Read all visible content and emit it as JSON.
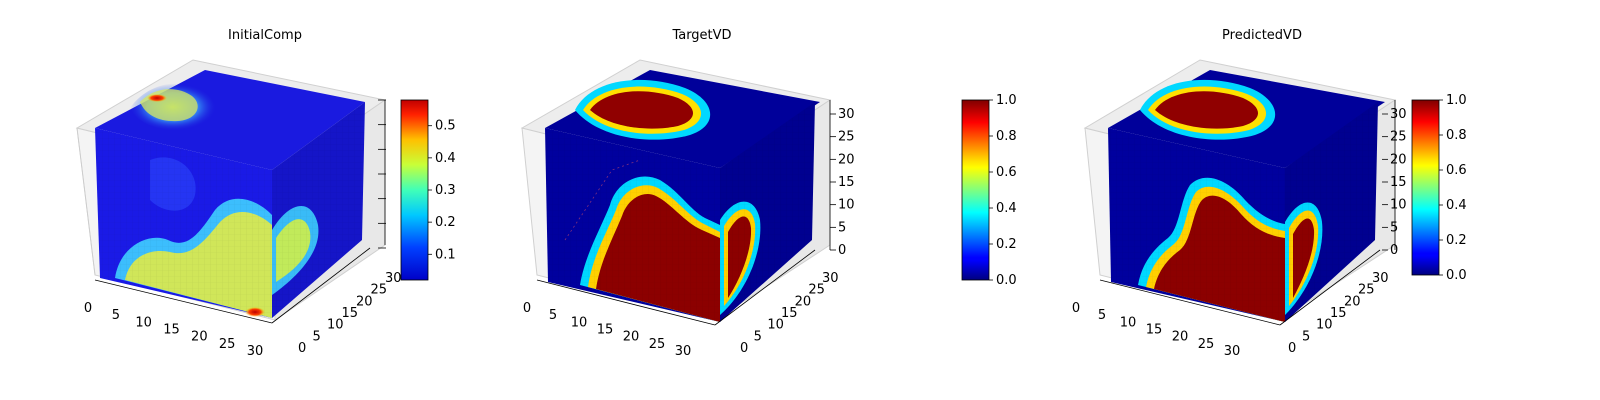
{
  "chart_data": [
    {
      "type": "voxel-3d",
      "title": "InitialComp",
      "colormap": "jet",
      "x_ticks": [
        "0",
        "5",
        "10",
        "15",
        "20",
        "25",
        "30"
      ],
      "y_ticks": [
        "0",
        "5",
        "10",
        "15",
        "20",
        "25",
        "30"
      ],
      "z_ticks": [],
      "xlim": [
        0,
        32
      ],
      "ylim": [
        0,
        32
      ],
      "zlim": [
        0,
        32
      ],
      "colorbar": {
        "min": 0.02,
        "max": 0.58,
        "ticks": [
          "0.1",
          "0.2",
          "0.3",
          "0.4",
          "0.5"
        ],
        "tick_values": [
          0.1,
          0.2,
          0.3,
          0.4,
          0.5
        ]
      }
    },
    {
      "type": "voxel-3d",
      "title": "TargetVD",
      "colormap": "jet",
      "x_ticks": [
        "0",
        "5",
        "10",
        "15",
        "20",
        "25",
        "30"
      ],
      "y_ticks": [
        "0",
        "5",
        "10",
        "15",
        "20",
        "25",
        "30"
      ],
      "z_ticks": [
        "0",
        "5",
        "10",
        "15",
        "20",
        "25",
        "30"
      ],
      "xlim": [
        0,
        32
      ],
      "ylim": [
        0,
        32
      ],
      "zlim": [
        0,
        32
      ],
      "colorbar": {
        "min": 0.0,
        "max": 1.0,
        "ticks": [
          "0.0",
          "0.2",
          "0.4",
          "0.6",
          "0.8",
          "1.0"
        ],
        "tick_values": [
          0.0,
          0.2,
          0.4,
          0.6,
          0.8,
          1.0
        ]
      }
    },
    {
      "type": "voxel-3d",
      "title": "PredictedVD",
      "colormap": "jet",
      "x_ticks": [
        "0",
        "5",
        "10",
        "15",
        "20",
        "25",
        "30"
      ],
      "y_ticks": [
        "0",
        "5",
        "10",
        "15",
        "20",
        "25",
        "30"
      ],
      "z_ticks": [
        "0",
        "5",
        "10",
        "15",
        "20",
        "25",
        "30"
      ],
      "xlim": [
        0,
        32
      ],
      "ylim": [
        0,
        32
      ],
      "zlim": [
        0,
        32
      ],
      "colorbar": {
        "min": 0.0,
        "max": 1.0,
        "ticks": [
          "0.0",
          "0.2",
          "0.4",
          "0.6",
          "0.8",
          "1.0"
        ],
        "tick_values": [
          0.0,
          0.2,
          0.4,
          0.6,
          0.8,
          1.0
        ]
      }
    }
  ]
}
